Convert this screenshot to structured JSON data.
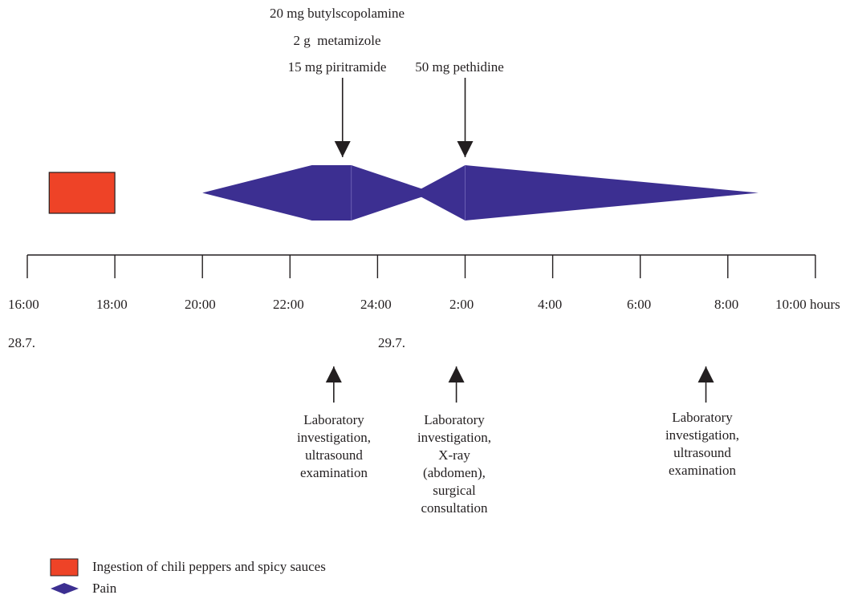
{
  "timeline": {
    "ticks": [
      "16:00",
      "18:00",
      "20:00",
      "22:00",
      "24:00",
      "2:00",
      "4:00",
      "6:00",
      "8:00",
      "10:00 hours"
    ],
    "dates": [
      {
        "label": "28.7.",
        "at_hour": 16
      },
      {
        "label": "29.7.",
        "at_hour": 24
      }
    ]
  },
  "ingestion": {
    "start_hour": 16.5,
    "end_hour": 18.0
  },
  "pain_profile": {
    "points": [
      {
        "hour": 20.0,
        "level": 0.0
      },
      {
        "hour": 22.5,
        "level": 1.0
      },
      {
        "hour": 23.4,
        "level": 1.0
      },
      {
        "hour": 25.0,
        "level": 0.15
      },
      {
        "hour": 26.0,
        "level": 1.0
      },
      {
        "hour": 32.7,
        "level": 0.0
      }
    ]
  },
  "medications": [
    {
      "hour": 23.2,
      "lines": [
        "20 mg butylscopolamine",
        "2 g  metamizole",
        "15 mg piritramide"
      ]
    },
    {
      "hour": 26.0,
      "lines": [
        "50 mg pethidine"
      ]
    }
  ],
  "investigations": [
    {
      "hour": 23.0,
      "text": "Laboratory\ninvestigation,\nultrasound\nexamination"
    },
    {
      "hour": 25.8,
      "text": "Laboratory\ninvestigation,\nX-ray\n(abdomen),\nsurgical\nconsultation"
    },
    {
      "hour": 31.5,
      "text": "Laboratory\ninvestigation,\nultrasound\nexamination"
    }
  ],
  "legend": {
    "ingestion_label": "Ingestion of chili peppers and spicy sauces",
    "pain_label": "Pain"
  },
  "colors": {
    "ingestion": "#ee4327",
    "pain": "#3c2f91",
    "ink": "#231f20"
  }
}
